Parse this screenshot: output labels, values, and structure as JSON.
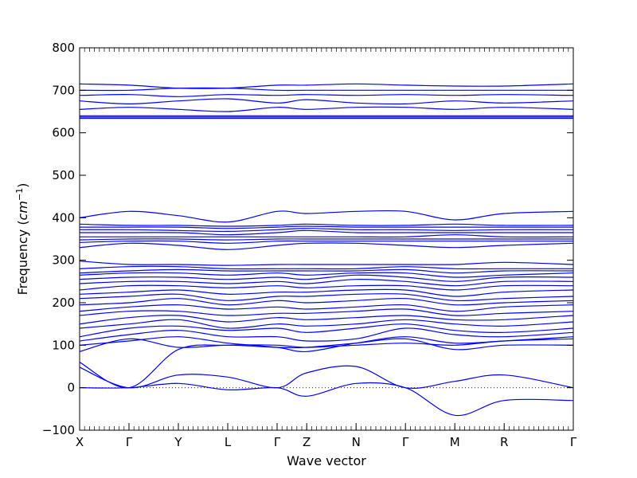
{
  "chart_data": {
    "type": "line",
    "title": "",
    "xlabel": "Wave vector",
    "ylabel_text": "Frequency (",
    "ylabel_unit": "cm",
    "ylabel_exp": "−1",
    "ylabel_close": ")",
    "ylim": [
      -100,
      800
    ],
    "yticks": [
      "−100",
      "0",
      "100",
      "200",
      "300",
      "400",
      "500",
      "600",
      "700",
      "800"
    ],
    "ytick_values": [
      -100,
      0,
      100,
      200,
      300,
      400,
      500,
      600,
      700,
      800
    ],
    "xticks": [
      "X",
      "Γ",
      "Y",
      "L",
      "Γ",
      "Z",
      "N",
      "Γ",
      "M",
      "R",
      "Γ"
    ],
    "xtick_positions": [
      0,
      1,
      2,
      3,
      4,
      4.6,
      5.6,
      6.6,
      7.6,
      8.6,
      10
    ],
    "xlim": [
      0,
      10
    ],
    "zero_line": {
      "value": 0,
      "style": "dotted"
    },
    "series_color": "#0000ff",
    "series": [
      {
        "values": [
          60,
          0,
          90,
          100,
          100,
          95,
          100,
          105,
          100,
          110,
          115
        ]
      },
      {
        "values": [
          48,
          0,
          30,
          25,
          0,
          35,
          50,
          0,
          15,
          30,
          0
        ]
      },
      {
        "values": [
          0,
          0,
          10,
          -5,
          0,
          -20,
          10,
          0,
          -65,
          -30,
          -30
        ]
      },
      {
        "values": [
          85,
          115,
          95,
          100,
          95,
          95,
          105,
          115,
          90,
          100,
          100
        ]
      },
      {
        "values": [
          100,
          110,
          120,
          105,
          95,
          85,
          105,
          120,
          105,
          110,
          120
        ]
      },
      {
        "values": [
          110,
          125,
          135,
          120,
          120,
          110,
          115,
          140,
          125,
          120,
          130
        ]
      },
      {
        "values": [
          120,
          140,
          145,
          135,
          140,
          130,
          140,
          150,
          135,
          130,
          140
        ]
      },
      {
        "values": [
          140,
          150,
          160,
          140,
          150,
          145,
          150,
          160,
          150,
          145,
          155
        ]
      },
      {
        "values": [
          150,
          165,
          170,
          155,
          165,
          160,
          165,
          170,
          160,
          160,
          170
        ]
      },
      {
        "values": [
          170,
          180,
          180,
          170,
          175,
          175,
          180,
          185,
          170,
          175,
          180
        ]
      },
      {
        "values": [
          180,
          190,
          195,
          185,
          190,
          185,
          190,
          195,
          180,
          190,
          195
        ]
      },
      {
        "values": [
          195,
          200,
          210,
          195,
          205,
          200,
          205,
          210,
          195,
          200,
          205
        ]
      },
      {
        "values": [
          210,
          215,
          220,
          205,
          215,
          215,
          220,
          220,
          205,
          210,
          215
        ]
      },
      {
        "values": [
          220,
          225,
          230,
          220,
          225,
          225,
          230,
          230,
          215,
          225,
          230
        ]
      },
      {
        "values": [
          230,
          240,
          240,
          235,
          240,
          235,
          240,
          240,
          230,
          240,
          240
        ]
      },
      {
        "values": [
          245,
          250,
          250,
          245,
          250,
          245,
          255,
          250,
          240,
          250,
          250
        ]
      },
      {
        "values": [
          255,
          260,
          260,
          255,
          260,
          255,
          265,
          260,
          250,
          260,
          260
        ]
      },
      {
        "values": [
          265,
          270,
          270,
          265,
          270,
          265,
          270,
          270,
          260,
          265,
          270
        ]
      },
      {
        "values": [
          270,
          275,
          278,
          275,
          275,
          275,
          275,
          278,
          270,
          275,
          275
        ]
      },
      {
        "values": [
          280,
          285,
          285,
          280,
          280,
          280,
          280,
          285,
          280,
          280,
          280
        ]
      },
      {
        "values": [
          298,
          290,
          290,
          288,
          290,
          290,
          290,
          290,
          290,
          295,
          290
        ]
      },
      {
        "values": [
          330,
          340,
          335,
          325,
          335,
          340,
          340,
          335,
          330,
          335,
          340
        ]
      },
      {
        "values": [
          342,
          345,
          345,
          340,
          345,
          345,
          345,
          345,
          345,
          345,
          345
        ]
      },
      {
        "values": [
          348,
          350,
          350,
          348,
          350,
          350,
          350,
          350,
          350,
          350,
          350
        ]
      },
      {
        "values": [
          355,
          355,
          355,
          355,
          355,
          355,
          355,
          355,
          360,
          355,
          355
        ]
      },
      {
        "values": [
          365,
          365,
          365,
          360,
          365,
          370,
          365,
          365,
          365,
          365,
          365
        ]
      },
      {
        "values": [
          372,
          372,
          370,
          368,
          372,
          375,
          372,
          372,
          370,
          372,
          372
        ]
      },
      {
        "values": [
          378,
          378,
          378,
          375,
          378,
          380,
          378,
          378,
          378,
          378,
          378
        ]
      },
      {
        "values": [
          385,
          382,
          382,
          380,
          382,
          385,
          382,
          382,
          385,
          382,
          382
        ]
      },
      {
        "values": [
          400,
          415,
          405,
          390,
          415,
          410,
          415,
          415,
          395,
          410,
          415
        ]
      },
      {
        "values": [
          634,
          634,
          634,
          634,
          634,
          634,
          634,
          634,
          634,
          634,
          634
        ]
      },
      {
        "values": [
          637,
          637,
          637,
          637,
          637,
          637,
          637,
          637,
          637,
          637,
          637
        ]
      },
      {
        "values": [
          640,
          640,
          640,
          640,
          640,
          640,
          640,
          640,
          640,
          640,
          640
        ]
      },
      {
        "values": [
          655,
          660,
          655,
          650,
          660,
          655,
          660,
          660,
          655,
          660,
          655
        ]
      },
      {
        "values": [
          675,
          668,
          675,
          680,
          670,
          678,
          670,
          668,
          675,
          670,
          675
        ]
      },
      {
        "values": [
          688,
          690,
          685,
          690,
          688,
          690,
          688,
          690,
          688,
          690,
          688
        ]
      },
      {
        "values": [
          700,
          700,
          705,
          705,
          700,
          700,
          700,
          700,
          700,
          700,
          700
        ]
      },
      {
        "values": [
          715,
          712,
          705,
          705,
          712,
          712,
          715,
          712,
          710,
          710,
          715
        ]
      }
    ]
  }
}
